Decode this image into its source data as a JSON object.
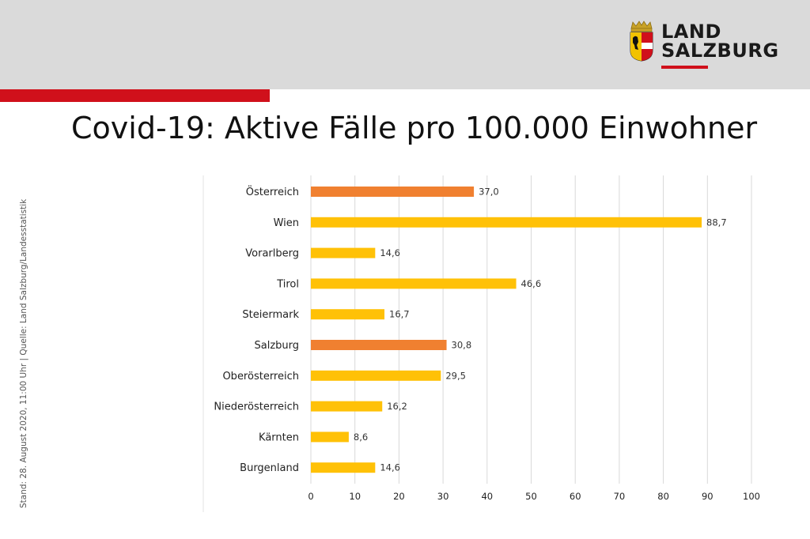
{
  "header": {
    "logo_line1": "LAND",
    "logo_line2": "SALZBURG"
  },
  "colors": {
    "header_bg": "#dadada",
    "accent_red": "#d0101b",
    "bar_highlight": "#f08030",
    "bar_default": "#ffc107"
  },
  "side_note": "Stand: 28. August 2020, 11:00 Uhr | Quelle: Land Salzburg/Landesstatistik",
  "chart_data": {
    "type": "bar",
    "orientation": "horizontal",
    "title": "Covid-19: Aktive Fälle pro 100.000 Einwohner",
    "xlabel": "",
    "ylabel": "",
    "categories": [
      "Österreich",
      "Wien",
      "Vorarlberg",
      "Tirol",
      "Steiermark",
      "Salzburg",
      "Oberösterreich",
      "Niederösterreich",
      "Kärnten",
      "Burgenland"
    ],
    "values": [
      37.0,
      88.7,
      14.6,
      46.6,
      16.7,
      30.8,
      29.5,
      16.2,
      8.6,
      14.6
    ],
    "value_labels": [
      "37,0",
      "88,7",
      "14,6",
      "46,6",
      "16,7",
      "30,8",
      "29,5",
      "16,2",
      "8,6",
      "14,6"
    ],
    "highlighted": [
      "Österreich",
      "Salzburg"
    ],
    "xlim": [
      0,
      100
    ],
    "xticks": [
      0,
      10,
      20,
      30,
      40,
      50,
      60,
      70,
      80,
      90,
      100
    ],
    "grid": true
  }
}
